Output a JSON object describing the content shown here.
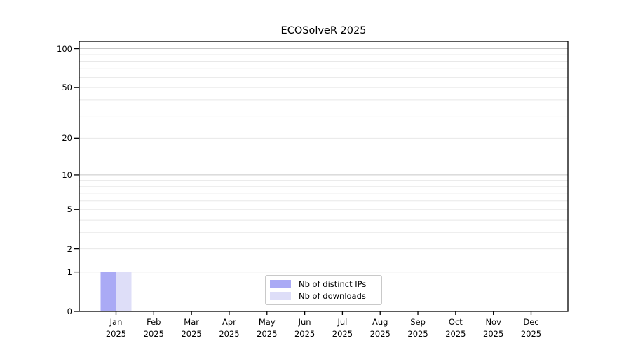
{
  "chart_data": {
    "type": "bar",
    "title": "ECOSolveR 2025",
    "categories": [
      {
        "month": "Jan",
        "year": "2025"
      },
      {
        "month": "Feb",
        "year": "2025"
      },
      {
        "month": "Mar",
        "year": "2025"
      },
      {
        "month": "Apr",
        "year": "2025"
      },
      {
        "month": "May",
        "year": "2025"
      },
      {
        "month": "Jun",
        "year": "2025"
      },
      {
        "month": "Jul",
        "year": "2025"
      },
      {
        "month": "Aug",
        "year": "2025"
      },
      {
        "month": "Sep",
        "year": "2025"
      },
      {
        "month": "Oct",
        "year": "2025"
      },
      {
        "month": "Nov",
        "year": "2025"
      },
      {
        "month": "Dec",
        "year": "2025"
      }
    ],
    "series": [
      {
        "name": "Nb of distinct IPs",
        "color": "#aaaaf5",
        "values": [
          1,
          0,
          0,
          0,
          0,
          0,
          0,
          0,
          0,
          0,
          0,
          0
        ]
      },
      {
        "name": "Nb of downloads",
        "color": "#dedef8",
        "values": [
          1,
          0,
          0,
          0,
          0,
          0,
          0,
          0,
          0,
          0,
          0,
          0
        ]
      }
    ],
    "y_axis": {
      "scale": "log10(1+y)",
      "ylim": [
        0,
        114
      ],
      "tick_values": [
        0,
        1,
        2,
        5,
        10,
        20,
        50,
        100
      ],
      "tick_labels": [
        "0",
        "1",
        "2",
        "5",
        "10",
        "20",
        "50",
        "100"
      ],
      "gridlines_major": [
        1,
        10,
        100
      ],
      "gridlines_minor": [
        2,
        3,
        4,
        5,
        6,
        7,
        8,
        9,
        20,
        30,
        40,
        50,
        60,
        70,
        80,
        90
      ]
    },
    "xlabel": "",
    "ylabel": "",
    "grid": "horizontal",
    "legend": {
      "position": "bottom-center-inside",
      "entries": [
        "Nb of distinct IPs",
        "Nb of downloads"
      ]
    },
    "colors": {
      "gridline_major": "#c6c6c6",
      "gridline_minor": "#e8e8e8",
      "spine": "#000000"
    }
  }
}
